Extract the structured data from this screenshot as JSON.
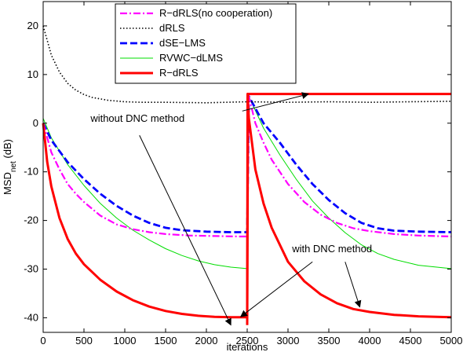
{
  "chart_data": {
    "type": "line",
    "xlabel": "iterations",
    "ylabel_main": "MSD",
    "ylabel_sub": "net",
    "ylabel_unit": " (dB)",
    "xlim": [
      0,
      5000
    ],
    "ylim": [
      -43,
      25
    ],
    "xticks": [
      0,
      500,
      1000,
      1500,
      2000,
      2500,
      3000,
      3500,
      4000,
      4500,
      5000
    ],
    "yticks": [
      20,
      10,
      0,
      -10,
      -20,
      -30,
      -40
    ],
    "grid": false,
    "legend_position": "top-center",
    "series": [
      {
        "name": "R−dRLS(no cooperation)",
        "color": "#ff00ff",
        "style": "dashdot",
        "x": [
          0,
          100,
          200,
          300,
          400,
          500,
          700,
          900,
          1100,
          1300,
          1500,
          1800,
          2100,
          2400,
          2500,
          2520,
          2600,
          2700,
          2800,
          3000,
          3200,
          3400,
          3600,
          3800,
          4000,
          4300,
          4600,
          5000
        ],
        "y": [
          0,
          -6,
          -9.5,
          -12.5,
          -14.5,
          -16.2,
          -19,
          -20.8,
          -21.8,
          -22.4,
          -22.8,
          -23.1,
          -23.2,
          -23.3,
          -23.3,
          5.5,
          0,
          -4,
          -7.5,
          -12.5,
          -16.2,
          -18.8,
          -20.5,
          -21.6,
          -22.2,
          -22.8,
          -23.1,
          -23.3
        ]
      },
      {
        "name": "dRLS",
        "color": "#000000",
        "style": "dotted",
        "x": [
          0,
          50,
          100,
          200,
          300,
          400,
          500,
          600,
          800,
          1000,
          1200,
          1500,
          2000,
          2500,
          3000,
          3500,
          4000,
          4500,
          5000
        ],
        "y": [
          20,
          17,
          14,
          10.5,
          8.2,
          6.8,
          5.9,
          5.3,
          4.7,
          4.4,
          4.3,
          4.3,
          4.2,
          4.4,
          4.3,
          4.4,
          4.3,
          4.4,
          4.5
        ]
      },
      {
        "name": "dSE−LMS",
        "color": "#0000ff",
        "style": "dashed",
        "x": [
          0,
          100,
          300,
          500,
          700,
          900,
          1100,
          1300,
          1500,
          1700,
          2000,
          2300,
          2500,
          2520,
          2700,
          2900,
          3100,
          3300,
          3500,
          3700,
          3900,
          4100,
          4300,
          4600,
          5000
        ],
        "y": [
          0,
          -3.5,
          -8,
          -11.5,
          -14.5,
          -17,
          -19,
          -20.5,
          -21.5,
          -22,
          -22.3,
          -22.4,
          -22.4,
          5.5,
          0,
          -4,
          -8.5,
          -12.5,
          -15.8,
          -18.5,
          -20.5,
          -21.6,
          -22.1,
          -22.3,
          -22.4
        ]
      },
      {
        "name": "RVWC−dLMS",
        "color": "#00dd00",
        "style": "solid-thin",
        "x": [
          0,
          100,
          300,
          500,
          700,
          900,
          1100,
          1300,
          1500,
          1700,
          1900,
          2100,
          2300,
          2500,
          2520,
          2700,
          2900,
          3100,
          3300,
          3500,
          3700,
          3900,
          4100,
          4300,
          4600,
          5000
        ],
        "y": [
          1,
          -3,
          -8.5,
          -12.8,
          -16.5,
          -19.5,
          -22,
          -24,
          -25.8,
          -27.2,
          -28.3,
          -29.1,
          -29.6,
          -29.9,
          5.5,
          -1,
          -6.5,
          -11.5,
          -16,
          -19.5,
          -22.5,
          -25,
          -26.8,
          -28,
          -29.2,
          -29.9
        ]
      },
      {
        "name": "R−dRLS",
        "color": "#ff0000",
        "style": "solid-thick",
        "x": [
          0,
          50,
          100,
          200,
          300,
          400,
          500,
          700,
          900,
          1100,
          1300,
          1500,
          1700,
          1900,
          2100,
          2300,
          2450,
          2500,
          2505,
          2520,
          2600,
          2700,
          2800,
          3000,
          3200,
          3400,
          3600,
          3800,
          4000,
          4300,
          4600,
          5000
        ],
        "y": [
          0,
          -8,
          -13,
          -19.5,
          -23.8,
          -26.8,
          -29,
          -32.2,
          -34.6,
          -36.4,
          -37.7,
          -38.6,
          -39.2,
          -39.6,
          -39.8,
          -39.9,
          -39.9,
          -39.9,
          6,
          1,
          -9.5,
          -16.5,
          -21.5,
          -28.5,
          -32.5,
          -35.2,
          -37,
          -38.2,
          -38.8,
          -39.4,
          -39.7,
          -39.9
        ]
      }
    ],
    "series_alt": {
      "color": "#ff0000",
      "x": [
        2500,
        2510,
        5000
      ],
      "y": [
        -41.5,
        6,
        6
      ]
    },
    "annotations": [
      {
        "text": "without DNC method",
        "text_pos": [
          580,
          0.3
        ],
        "arrows": [
          {
            "from": [
              1180,
              -2.5
            ],
            "to": [
              2300,
              -41.5
            ]
          },
          {
            "from": [
              2440,
              2.5
            ],
            "to": [
              3250,
              6
            ]
          }
        ]
      },
      {
        "text": "with DNC method",
        "text_pos": [
          3050,
          -26.5
        ],
        "arrows": [
          {
            "from": [
              3300,
              -28.5
            ],
            "to": [
              2420,
              -39.8
            ]
          },
          {
            "from": [
              3700,
              -28.5
            ],
            "to": [
              3880,
              -37.8
            ]
          }
        ]
      }
    ]
  }
}
